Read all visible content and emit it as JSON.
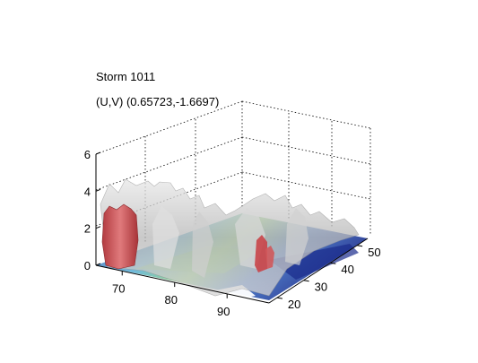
{
  "chart_data": {
    "type": "surface3d",
    "title_lines": [
      "Storm 1011",
      "(U,V) (0.65723,-1.6697)"
    ],
    "z_axis": {
      "ticks": [
        0,
        2,
        4,
        6
      ],
      "range": [
        0,
        6
      ]
    },
    "x_axis": {
      "ticks": [
        70,
        80,
        90
      ],
      "range": [
        65,
        98
      ]
    },
    "y_axis": {
      "ticks": [
        20,
        30,
        40,
        50
      ],
      "range": [
        17,
        54
      ]
    },
    "grid": true,
    "colors": {
      "isosurface_outer": "#bdbdbd",
      "isosurface_core": "#c0464a",
      "floor_low": "#1a2b8c",
      "floor_mid": "#5fb3d6",
      "floor_high": "#8fd07a"
    }
  }
}
